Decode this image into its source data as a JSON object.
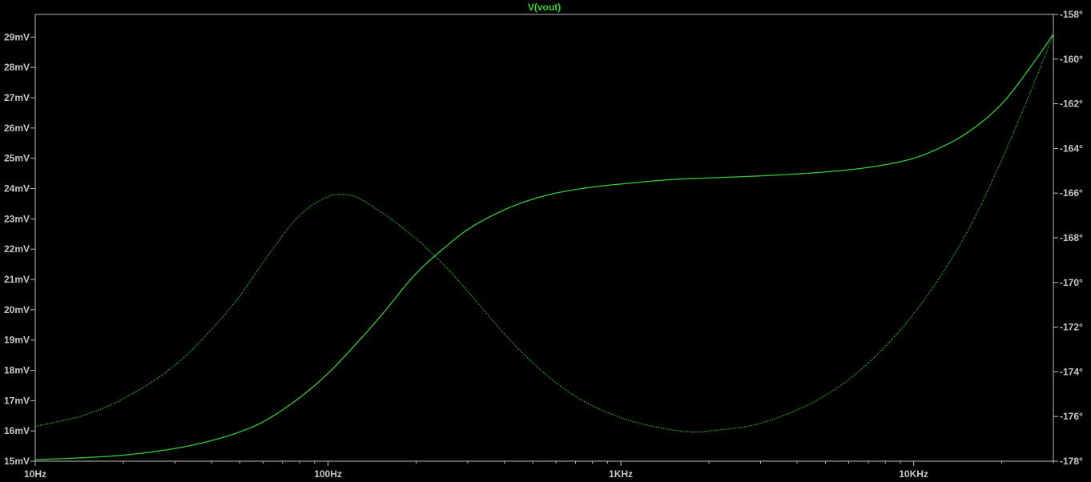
{
  "chart_data": {
    "type": "line",
    "title": "V(vout)",
    "xscale": "log",
    "xlim": [
      10,
      30000
    ],
    "x_ticks": [
      {
        "value": 10,
        "label": "10Hz"
      },
      {
        "value": 100,
        "label": "100Hz"
      },
      {
        "value": 1000,
        "label": "1KHz"
      },
      {
        "value": 10000,
        "label": "10KHz"
      }
    ],
    "ylim_left": [
      15,
      29.75
    ],
    "y_left_ticks": [
      {
        "value": 15,
        "label": "15mV"
      },
      {
        "value": 16,
        "label": "16mV"
      },
      {
        "value": 17,
        "label": "17mV"
      },
      {
        "value": 18,
        "label": "18mV"
      },
      {
        "value": 19,
        "label": "19mV"
      },
      {
        "value": 20,
        "label": "20mV"
      },
      {
        "value": 21,
        "label": "21mV"
      },
      {
        "value": 22,
        "label": "22mV"
      },
      {
        "value": 23,
        "label": "23mV"
      },
      {
        "value": 24,
        "label": "24mV"
      },
      {
        "value": 25,
        "label": "25mV"
      },
      {
        "value": 26,
        "label": "26mV"
      },
      {
        "value": 27,
        "label": "27mV"
      },
      {
        "value": 28,
        "label": "28mV"
      },
      {
        "value": 29,
        "label": "29mV"
      }
    ],
    "ylim_right": [
      -178,
      -158
    ],
    "y_right_ticks": [
      {
        "value": -158,
        "label": "-158°"
      },
      {
        "value": -160,
        "label": "-160°"
      },
      {
        "value": -162,
        "label": "-162°"
      },
      {
        "value": -164,
        "label": "-164°"
      },
      {
        "value": -166,
        "label": "-166°"
      },
      {
        "value": -168,
        "label": "-168°"
      },
      {
        "value": -170,
        "label": "-170°"
      },
      {
        "value": -172,
        "label": "-172°"
      },
      {
        "value": -174,
        "label": "-174°"
      },
      {
        "value": -176,
        "label": "-176°"
      },
      {
        "value": -178,
        "label": "-178°"
      }
    ],
    "grid": false,
    "series": [
      {
        "axis": "left",
        "style": "solid",
        "color": "#37c837",
        "x": [
          10,
          15,
          20,
          30,
          40,
          50,
          60,
          80,
          100,
          120,
          150,
          200,
          250,
          300,
          400,
          500,
          600,
          800,
          1000,
          1500,
          2000,
          3000,
          5000,
          7000,
          10000,
          12000,
          15000,
          20000,
          25000,
          30000
        ],
        "y": [
          15.05,
          15.12,
          15.2,
          15.42,
          15.68,
          15.97,
          16.3,
          17.1,
          17.9,
          18.7,
          19.75,
          21.2,
          22.05,
          22.65,
          23.3,
          23.65,
          23.85,
          24.05,
          24.15,
          24.3,
          24.35,
          24.42,
          24.55,
          24.7,
          25.0,
          25.3,
          25.8,
          26.8,
          28.0,
          29.1
        ]
      },
      {
        "axis": "right",
        "style": "dotted",
        "color": "#37c837",
        "x": [
          10,
          15,
          20,
          30,
          40,
          50,
          60,
          80,
          100,
          110,
          120,
          150,
          200,
          250,
          300,
          400,
          500,
          700,
          1000,
          1500,
          1800,
          2000,
          3000,
          5000,
          7000,
          10000,
          15000,
          20000,
          25000,
          30000
        ],
        "y": [
          -176.45,
          -175.9,
          -175.2,
          -173.7,
          -172.1,
          -170.6,
          -169.1,
          -167.0,
          -166.15,
          -166.05,
          -166.1,
          -166.8,
          -168.05,
          -169.25,
          -170.4,
          -172.3,
          -173.6,
          -175.1,
          -176.05,
          -176.6,
          -176.7,
          -176.65,
          -176.3,
          -175.05,
          -173.6,
          -171.4,
          -167.9,
          -164.5,
          -161.5,
          -158.9
        ]
      }
    ]
  }
}
